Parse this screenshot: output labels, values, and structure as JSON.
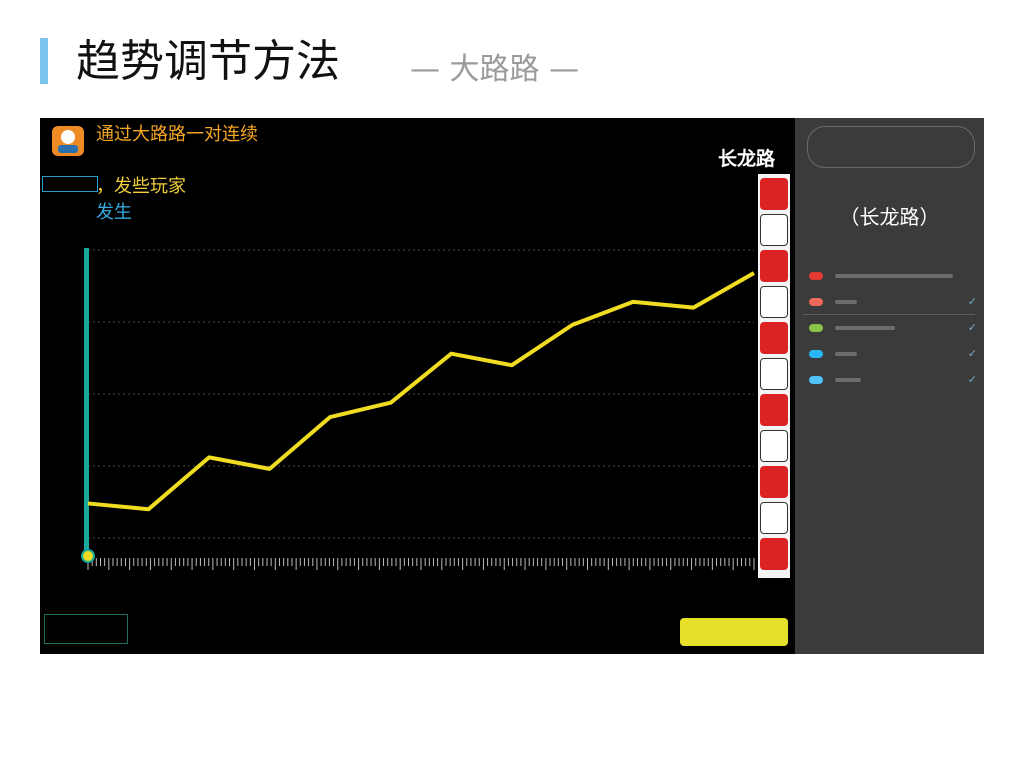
{
  "header": {
    "title": "趋势调节方法",
    "subtitle": "—  大路路  —"
  },
  "game": {
    "taglines": [
      {
        "text": "通过大路路一对连续",
        "color": "#f5a623"
      },
      {
        "text": "，发些玩家",
        "color": "#f0cf3a"
      },
      {
        "text": "发生",
        "color": "#36a9e1"
      }
    ],
    "corner_label": "长龙路",
    "vertical_cells": [
      "red",
      "white",
      "red",
      "white",
      "red",
      "white",
      "red",
      "white",
      "red",
      "white",
      "red"
    ],
    "accent_line": "#f0dc21",
    "accent_axis": "#19a89a"
  },
  "sidebar": {
    "title": "（长龙路）",
    "rows": [
      {
        "dot_color": "#e53935",
        "check": ""
      },
      {
        "dot_color": "#ef6a5a",
        "check": "✓"
      },
      {
        "dot_color": "#8bc34a",
        "check": "✓"
      },
      {
        "dot_color": "#29b6f6",
        "check": "✓"
      },
      {
        "dot_color": "#4fc3f7",
        "check": "✓"
      }
    ]
  },
  "chart_data": {
    "type": "line",
    "x": [
      1,
      2,
      3,
      4,
      5,
      6,
      7,
      8,
      9,
      10,
      11,
      12
    ],
    "series": [
      {
        "values": [
          0.12,
          0.1,
          0.28,
          0.24,
          0.42,
          0.47,
          0.64,
          0.6,
          0.74,
          0.82,
          0.8,
          0.92
        ]
      }
    ],
    "ylim": [
      0,
      1
    ],
    "title": "",
    "xlabel": "",
    "ylabel": "",
    "grid": true
  }
}
